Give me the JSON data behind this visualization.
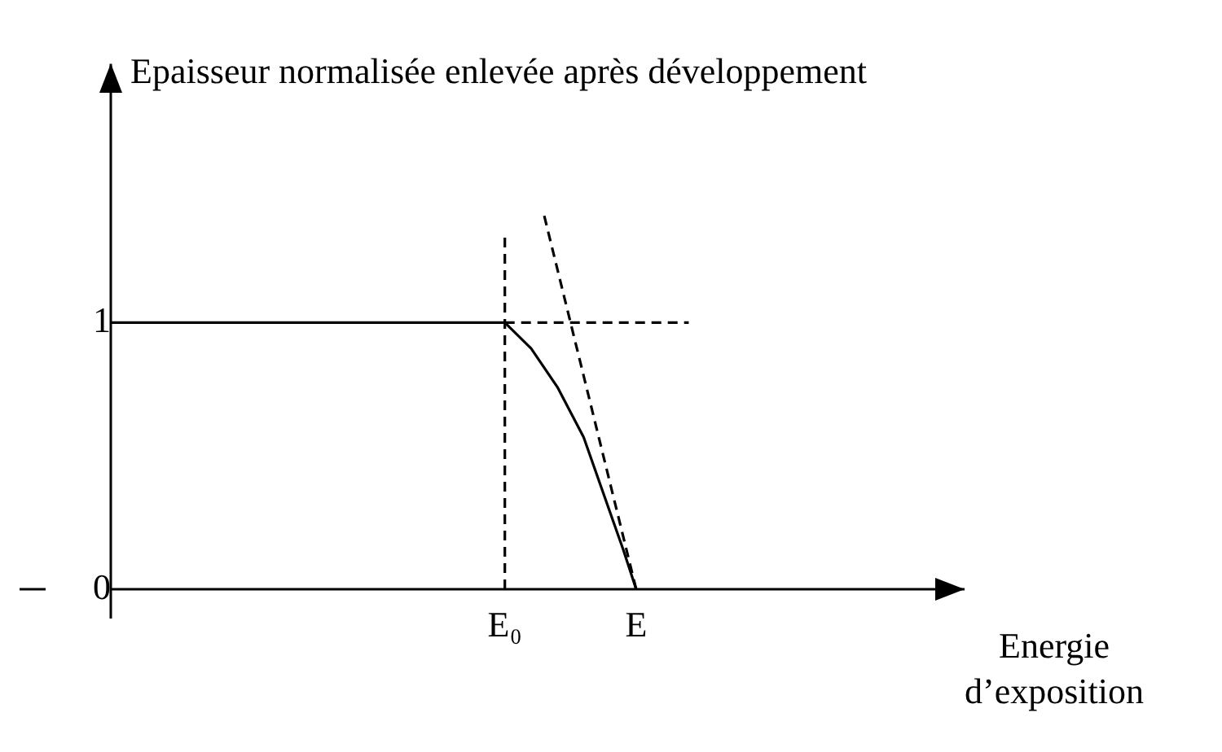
{
  "chart_data": {
    "type": "line",
    "ylabel": "Epaisseur normalisée enlevée après développement",
    "xlabel": "Energie\nd’exposition",
    "categories": [
      null,
      null,
      null,
      null,
      null,
      null,
      null,
      null,
      null,
      null,
      null,
      null,
      null,
      null,
      null,
      null,
      null,
      null,
      null,
      null,
      null,
      null,
      null,
      null,
      null,
      null,
      null,
      null,
      null,
      null,
      "E₀",
      null,
      null,
      null,
      null,
      null,
      null,
      null,
      null,
      null,
      "E",
      null,
      null,
      null,
      null,
      null,
      null,
      null,
      null,
      null,
      null,
      null,
      null,
      null,
      null,
      null,
      null,
      null,
      null,
      null,
      null,
      null,
      null,
      null,
      null,
      null
    ],
    "ylim": [
      0,
      1.97
    ],
    "yticks": [
      0,
      1
    ],
    "marker": "none",
    "series": [
      {
        "color": "#000000",
        "line_style": "solid",
        "values": [
          1,
          null,
          null,
          null,
          null,
          null,
          null,
          null,
          null,
          null,
          null,
          null,
          null,
          null,
          null,
          null,
          null,
          null,
          null,
          null,
          null,
          null,
          null,
          null,
          null,
          null,
          null,
          null,
          null,
          null,
          1,
          null,
          0.903,
          null,
          0.758,
          null,
          0.57,
          null,
          0.29,
          0.15,
          0,
          null,
          null,
          null,
          null,
          null,
          null,
          null,
          null,
          null,
          null,
          null,
          null,
          null,
          null,
          null,
          null,
          null,
          null,
          null,
          null,
          null,
          null,
          null,
          null,
          null
        ]
      },
      {
        "color": "#000000",
        "line_style": "dashed",
        "values": [
          null,
          null,
          null,
          null,
          null,
          null,
          null,
          null,
          null,
          null,
          null,
          null,
          null,
          null,
          null,
          null,
          null,
          null,
          null,
          null,
          null,
          null,
          null,
          null,
          null,
          null,
          null,
          null,
          null,
          null,
          1,
          null,
          null,
          null,
          null,
          null,
          null,
          null,
          null,
          null,
          null,
          null,
          null,
          null,
          1,
          null,
          null,
          null,
          null,
          null,
          null,
          null,
          null,
          null,
          null,
          null,
          null,
          null,
          null,
          null,
          null,
          null,
          null,
          null,
          null,
          null
        ]
      },
      {
        "color": "#000000",
        "line_style": "dashed",
        "x": [
          "E₀",
          "E₀"
        ],
        "values": [
          0,
          1.32
        ]
      },
      {
        "color": "#000000",
        "line_style": "dashed",
        "values": [
          null,
          null,
          null,
          null,
          null,
          null,
          null,
          null,
          null,
          null,
          null,
          null,
          null,
          null,
          null,
          null,
          null,
          null,
          null,
          null,
          null,
          null,
          null,
          null,
          null,
          null,
          null,
          null,
          null,
          null,
          null,
          null,
          null,
          1.4,
          null,
          null,
          null,
          null,
          null,
          null,
          0,
          null,
          null,
          null,
          null,
          null,
          null,
          null,
          null,
          null,
          null,
          null,
          null,
          null,
          null,
          null,
          null,
          null,
          null,
          null,
          null,
          null,
          null,
          null,
          null,
          null
        ]
      }
    ]
  }
}
